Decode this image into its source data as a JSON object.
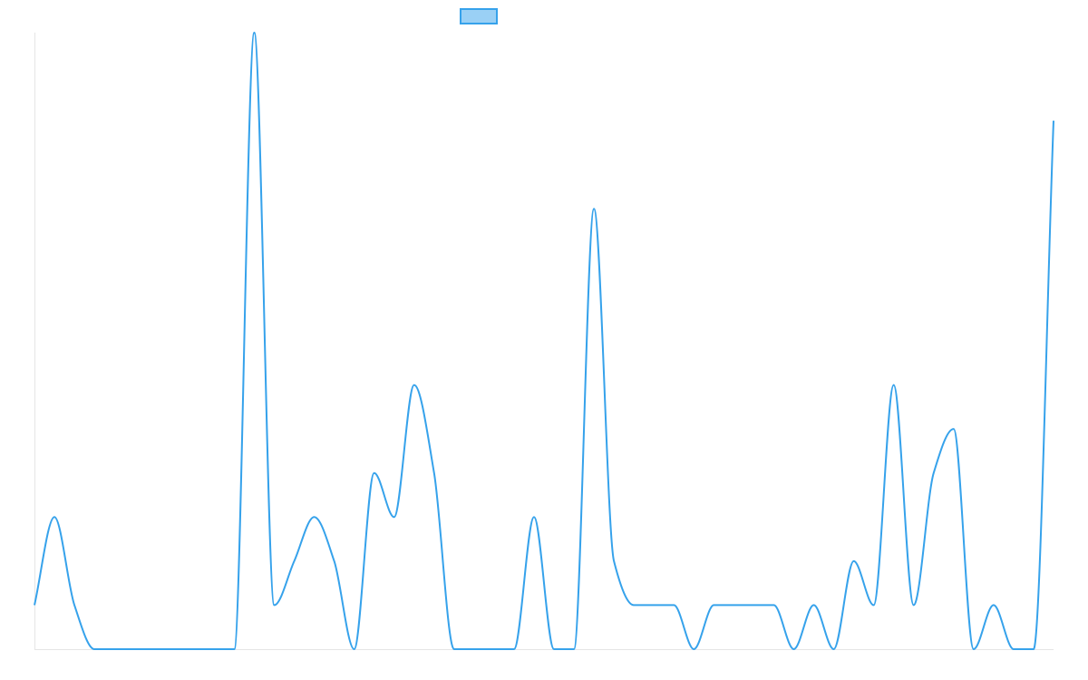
{
  "chart_data": {
    "type": "line",
    "categories": [
      null,
      null,
      null,
      null,
      null,
      null,
      null,
      null,
      null,
      null,
      null,
      null,
      null,
      null,
      null,
      null,
      null,
      null,
      null,
      null,
      null,
      null,
      null,
      null,
      null,
      null,
      null,
      null,
      null,
      null,
      null,
      null,
      null,
      null,
      null,
      null,
      null,
      null,
      null,
      null,
      null,
      null,
      null,
      null,
      null,
      null,
      null,
      null,
      null,
      null,
      null,
      null
    ],
    "series": [
      {
        "color": "#36a2eb",
        "fill": "#9ad0f5",
        "values": [
          1,
          3,
          1,
          0,
          0,
          0,
          0,
          0,
          0,
          0,
          0,
          14,
          1,
          2,
          3,
          2,
          0,
          4,
          3,
          6,
          4,
          0,
          0,
          0,
          0,
          3,
          0,
          0,
          10,
          2,
          1,
          1,
          1,
          0,
          1,
          1,
          1,
          1,
          0,
          1,
          0,
          2,
          1,
          6,
          1,
          4,
          5,
          0,
          1,
          0,
          0,
          12
        ]
      }
    ],
    "ylim": [
      0,
      14
    ]
  }
}
